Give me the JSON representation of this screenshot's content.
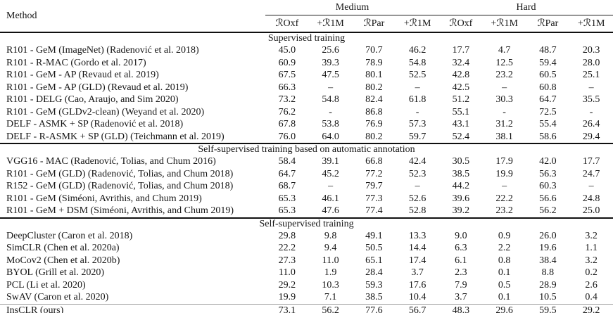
{
  "table": {
    "method_header": "Method",
    "group_headers": [
      {
        "label": "Medium"
      },
      {
        "label": "Hard"
      }
    ],
    "col_headers": [
      "ℛOxf",
      "+ℛ1M",
      "ℛPar",
      "+ℛ1M",
      "ℛOxf",
      "+ℛ1M",
      "ℛPar",
      "+ℛ1M"
    ],
    "sections": [
      {
        "title": "Supervised training",
        "rows": [
          {
            "method": "R101 - GeM (ImageNet) (Radenović et al. 2018)",
            "values": [
              "45.0",
              "25.6",
              "70.7",
              "46.2",
              "17.7",
              "4.7",
              "48.7",
              "20.3"
            ]
          },
          {
            "method": "R101 - R-MAC (Gordo et al. 2017)",
            "values": [
              "60.9",
              "39.3",
              "78.9",
              "54.8",
              "32.4",
              "12.5",
              "59.4",
              "28.0"
            ]
          },
          {
            "method": "R101 - GeM - AP (Revaud et al. 2019)",
            "values": [
              "67.5",
              "47.5",
              "80.1",
              "52.5",
              "42.8",
              "23.2",
              "60.5",
              "25.1"
            ]
          },
          {
            "method": "R101 - GeM - AP (GLD) (Revaud et al. 2019)",
            "values": [
              "66.3",
              "–",
              "80.2",
              "–",
              "42.5",
              "–",
              "60.8",
              "–"
            ]
          },
          {
            "method": "R101 - DELG (Cao, Araujo, and Sim 2020)",
            "values": [
              "73.2",
              "54.8",
              "82.4",
              "61.8",
              "51.2",
              "30.3",
              "64.7",
              "35.5"
            ]
          },
          {
            "method": "R101 - GeM (GLDv2-clean) (Weyand et al. 2020)",
            "values": [
              "76.2",
              "-",
              "86.8",
              "-",
              "55.1",
              "-",
              "72.5",
              "-"
            ]
          },
          {
            "method": "DELF - ASMK + SP (Radenović et al. 2018)",
            "values": [
              "67.8",
              "53.8",
              "76.9",
              "57.3",
              "43.1",
              "31.2",
              "55.4",
              "26.4"
            ]
          },
          {
            "method": "DELF - R-ASMK + SP (GLD) (Teichmann et al. 2019)",
            "values": [
              "76.0",
              "64.0",
              "80.2",
              "59.7",
              "52.4",
              "38.1",
              "58.6",
              "29.4"
            ]
          }
        ]
      },
      {
        "title": "Self-supervised training based on automatic annotation",
        "rows": [
          {
            "method": "VGG16 - MAC (Radenović, Tolias, and Chum 2016)",
            "values": [
              "58.4",
              "39.1",
              "66.8",
              "42.4",
              "30.5",
              "17.9",
              "42.0",
              "17.7"
            ]
          },
          {
            "method": "R101 - GeM (GLD) (Radenović, Tolias, and Chum 2018)",
            "values": [
              "64.7",
              "45.2",
              "77.2",
              "52.3",
              "38.5",
              "19.9",
              "56.3",
              "24.7"
            ]
          },
          {
            "method": "R152 - GeM (GLD) (Radenović, Tolias, and Chum 2018)",
            "values": [
              "68.7",
              "–",
              "79.7",
              "–",
              "44.2",
              "–",
              "60.3",
              "–"
            ]
          },
          {
            "method": "R101 - GeM (Siméoni, Avrithis, and Chum 2019)",
            "values": [
              "65.3",
              "46.1",
              "77.3",
              "52.6",
              "39.6",
              "22.2",
              "56.6",
              "24.8"
            ]
          },
          {
            "method": "R101 - GeM + DSM (Siméoni, Avrithis, and Chum 2019)",
            "values": [
              "65.3",
              "47.6",
              "77.4",
              "52.8",
              "39.2",
              "23.2",
              "56.2",
              "25.0"
            ]
          }
        ]
      },
      {
        "title": "Self-supervised training",
        "rows": [
          {
            "method": "DeepCluster (Caron et al. 2018)",
            "values": [
              "29.8",
              "9.8",
              "49.1",
              "13.3",
              "9.0",
              "0.9",
              "26.0",
              "3.2"
            ]
          },
          {
            "method": "SimCLR (Chen et al. 2020a)",
            "values": [
              "22.2",
              "9.4",
              "50.5",
              "14.4",
              "6.3",
              "2.2",
              "19.6",
              "1.1"
            ]
          },
          {
            "method": "MoCov2 (Chen et al. 2020b)",
            "values": [
              "27.3",
              "11.0",
              "65.1",
              "17.4",
              "6.1",
              "0.8",
              "38.4",
              "3.2"
            ]
          },
          {
            "method": "BYOL (Grill et al. 2020)",
            "values": [
              "11.0",
              "1.9",
              "28.4",
              "3.7",
              "2.3",
              "0.1",
              "8.8",
              "0.2"
            ]
          },
          {
            "method": "PCL (Li et al. 2020)",
            "values": [
              "29.2",
              "10.3",
              "59.3",
              "17.6",
              "7.9",
              "0.5",
              "28.9",
              "2.6"
            ]
          },
          {
            "method": "SwAV (Caron et al. 2020)",
            "values": [
              "19.9",
              "7.1",
              "38.5",
              "10.4",
              "3.7",
              "0.1",
              "10.5",
              "0.4"
            ]
          },
          {
            "method": "InsCLR (ours)",
            "values": [
              "73.1",
              "56.2",
              "77.6",
              "56.7",
              "48.3",
              "29.6",
              "59.5",
              "29.2"
            ],
            "rule_above": true
          }
        ]
      }
    ]
  }
}
